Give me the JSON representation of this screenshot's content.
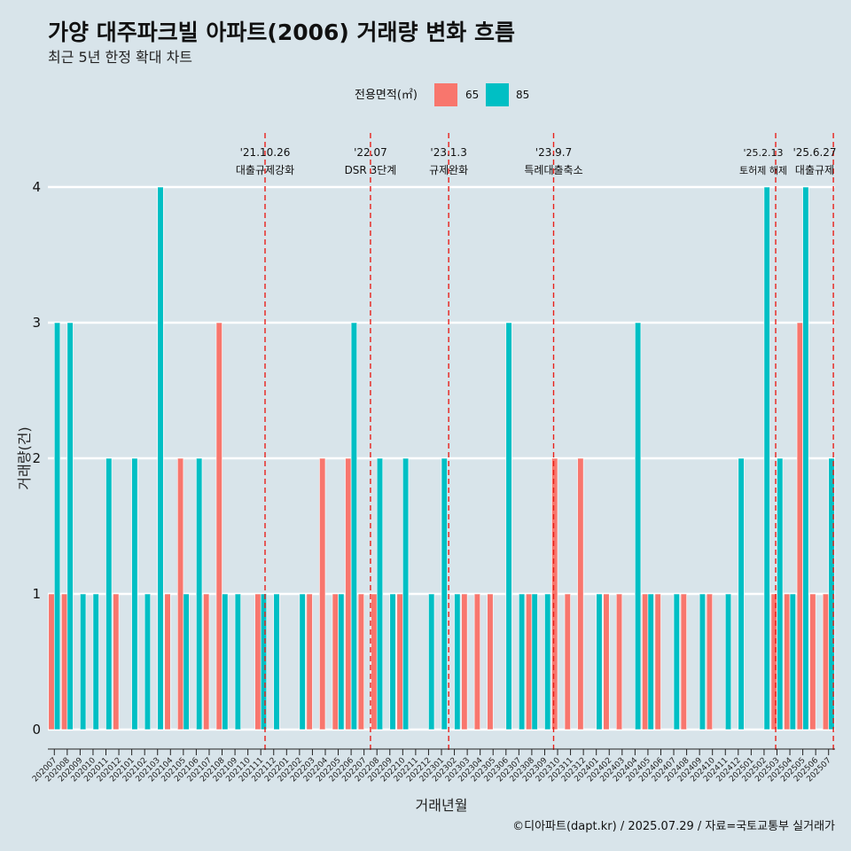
{
  "chart_data": {
    "type": "bar",
    "title": "가양 대주파크빌 아파트(2006) 거래량 변화 흐름",
    "subtitle": "최근 5년 한정 확대 차트",
    "xlabel": "거래년월",
    "ylabel": "거래량(건)",
    "ylim": [
      0,
      4
    ],
    "yticks": [
      "0",
      "1",
      "2",
      "3",
      "4"
    ],
    "legend": {
      "title": "전용면적(㎡)",
      "position": "top",
      "entries": [
        {
          "label": "65",
          "color": "#f8766d"
        },
        {
          "label": "85",
          "color": "#00bfc4"
        }
      ]
    },
    "categories": [
      "202007",
      "202008",
      "202009",
      "202010",
      "202011",
      "202012",
      "202101",
      "202102",
      "202103",
      "202104",
      "202105",
      "202106",
      "202107",
      "202108",
      "202109",
      "202110",
      "202111",
      "202112",
      "202201",
      "202202",
      "202203",
      "202204",
      "202205",
      "202206",
      "202207",
      "202208",
      "202209",
      "202210",
      "202211",
      "202212",
      "202301",
      "202302",
      "202303",
      "202304",
      "202305",
      "202306",
      "202307",
      "202308",
      "202309",
      "202310",
      "202311",
      "202312",
      "202401",
      "202402",
      "202403",
      "202404",
      "202405",
      "202406",
      "202407",
      "202408",
      "202409",
      "202410",
      "202411",
      "202412",
      "202501",
      "202502",
      "202503",
      "202504",
      "202505",
      "202506",
      "202507"
    ],
    "series": [
      {
        "name": "65",
        "color": "#f8766d",
        "values": [
          1,
          1,
          0,
          0,
          0,
          1,
          0,
          0,
          0,
          1,
          2,
          0,
          1,
          3,
          0,
          0,
          1,
          0,
          0,
          0,
          1,
          2,
          1,
          2,
          1,
          1,
          0,
          1,
          0,
          0,
          0,
          0,
          1,
          1,
          1,
          0,
          0,
          1,
          0,
          2,
          1,
          2,
          0,
          1,
          1,
          0,
          1,
          1,
          0,
          1,
          0,
          1,
          0,
          0,
          0,
          0,
          1,
          1,
          3,
          1,
          1
        ]
      },
      {
        "name": "85",
        "color": "#00bfc4",
        "values": [
          3,
          3,
          1,
          1,
          2,
          0,
          2,
          1,
          4,
          0,
          1,
          2,
          0,
          1,
          1,
          0,
          1,
          1,
          0,
          1,
          0,
          0,
          1,
          3,
          0,
          2,
          1,
          2,
          0,
          1,
          2,
          1,
          0,
          0,
          0,
          3,
          1,
          1,
          1,
          0,
          0,
          0,
          1,
          0,
          0,
          3,
          1,
          0,
          1,
          0,
          1,
          0,
          1,
          2,
          0,
          4,
          2,
          1,
          4,
          0,
          2
        ]
      }
    ],
    "annotations": [
      {
        "date": "'21.10.26",
        "label": "대출규제강화",
        "after_category": "202110",
        "fraction": 0.83
      },
      {
        "date": "'22.07",
        "label": "DSR 3단계",
        "after_category": "202207",
        "fraction": 0.0
      },
      {
        "date": "'23.1.3",
        "label": "규제완화",
        "after_category": "202301",
        "fraction": 0.06
      },
      {
        "date": "'23.9.7",
        "label": "특례대출축소",
        "after_category": "202309",
        "fraction": 0.19
      },
      {
        "date": "'25.2.13",
        "label": "토허제 해제",
        "after_category": "202502",
        "fraction": 0.4
      },
      {
        "date": "'25.6.27",
        "label": "대출규제",
        "after_category": "202506",
        "fraction": 0.87
      }
    ],
    "caption": "©디아파트(dapt.kr) / 2025.07.29 / 자료=국토교통부 실거래가"
  }
}
